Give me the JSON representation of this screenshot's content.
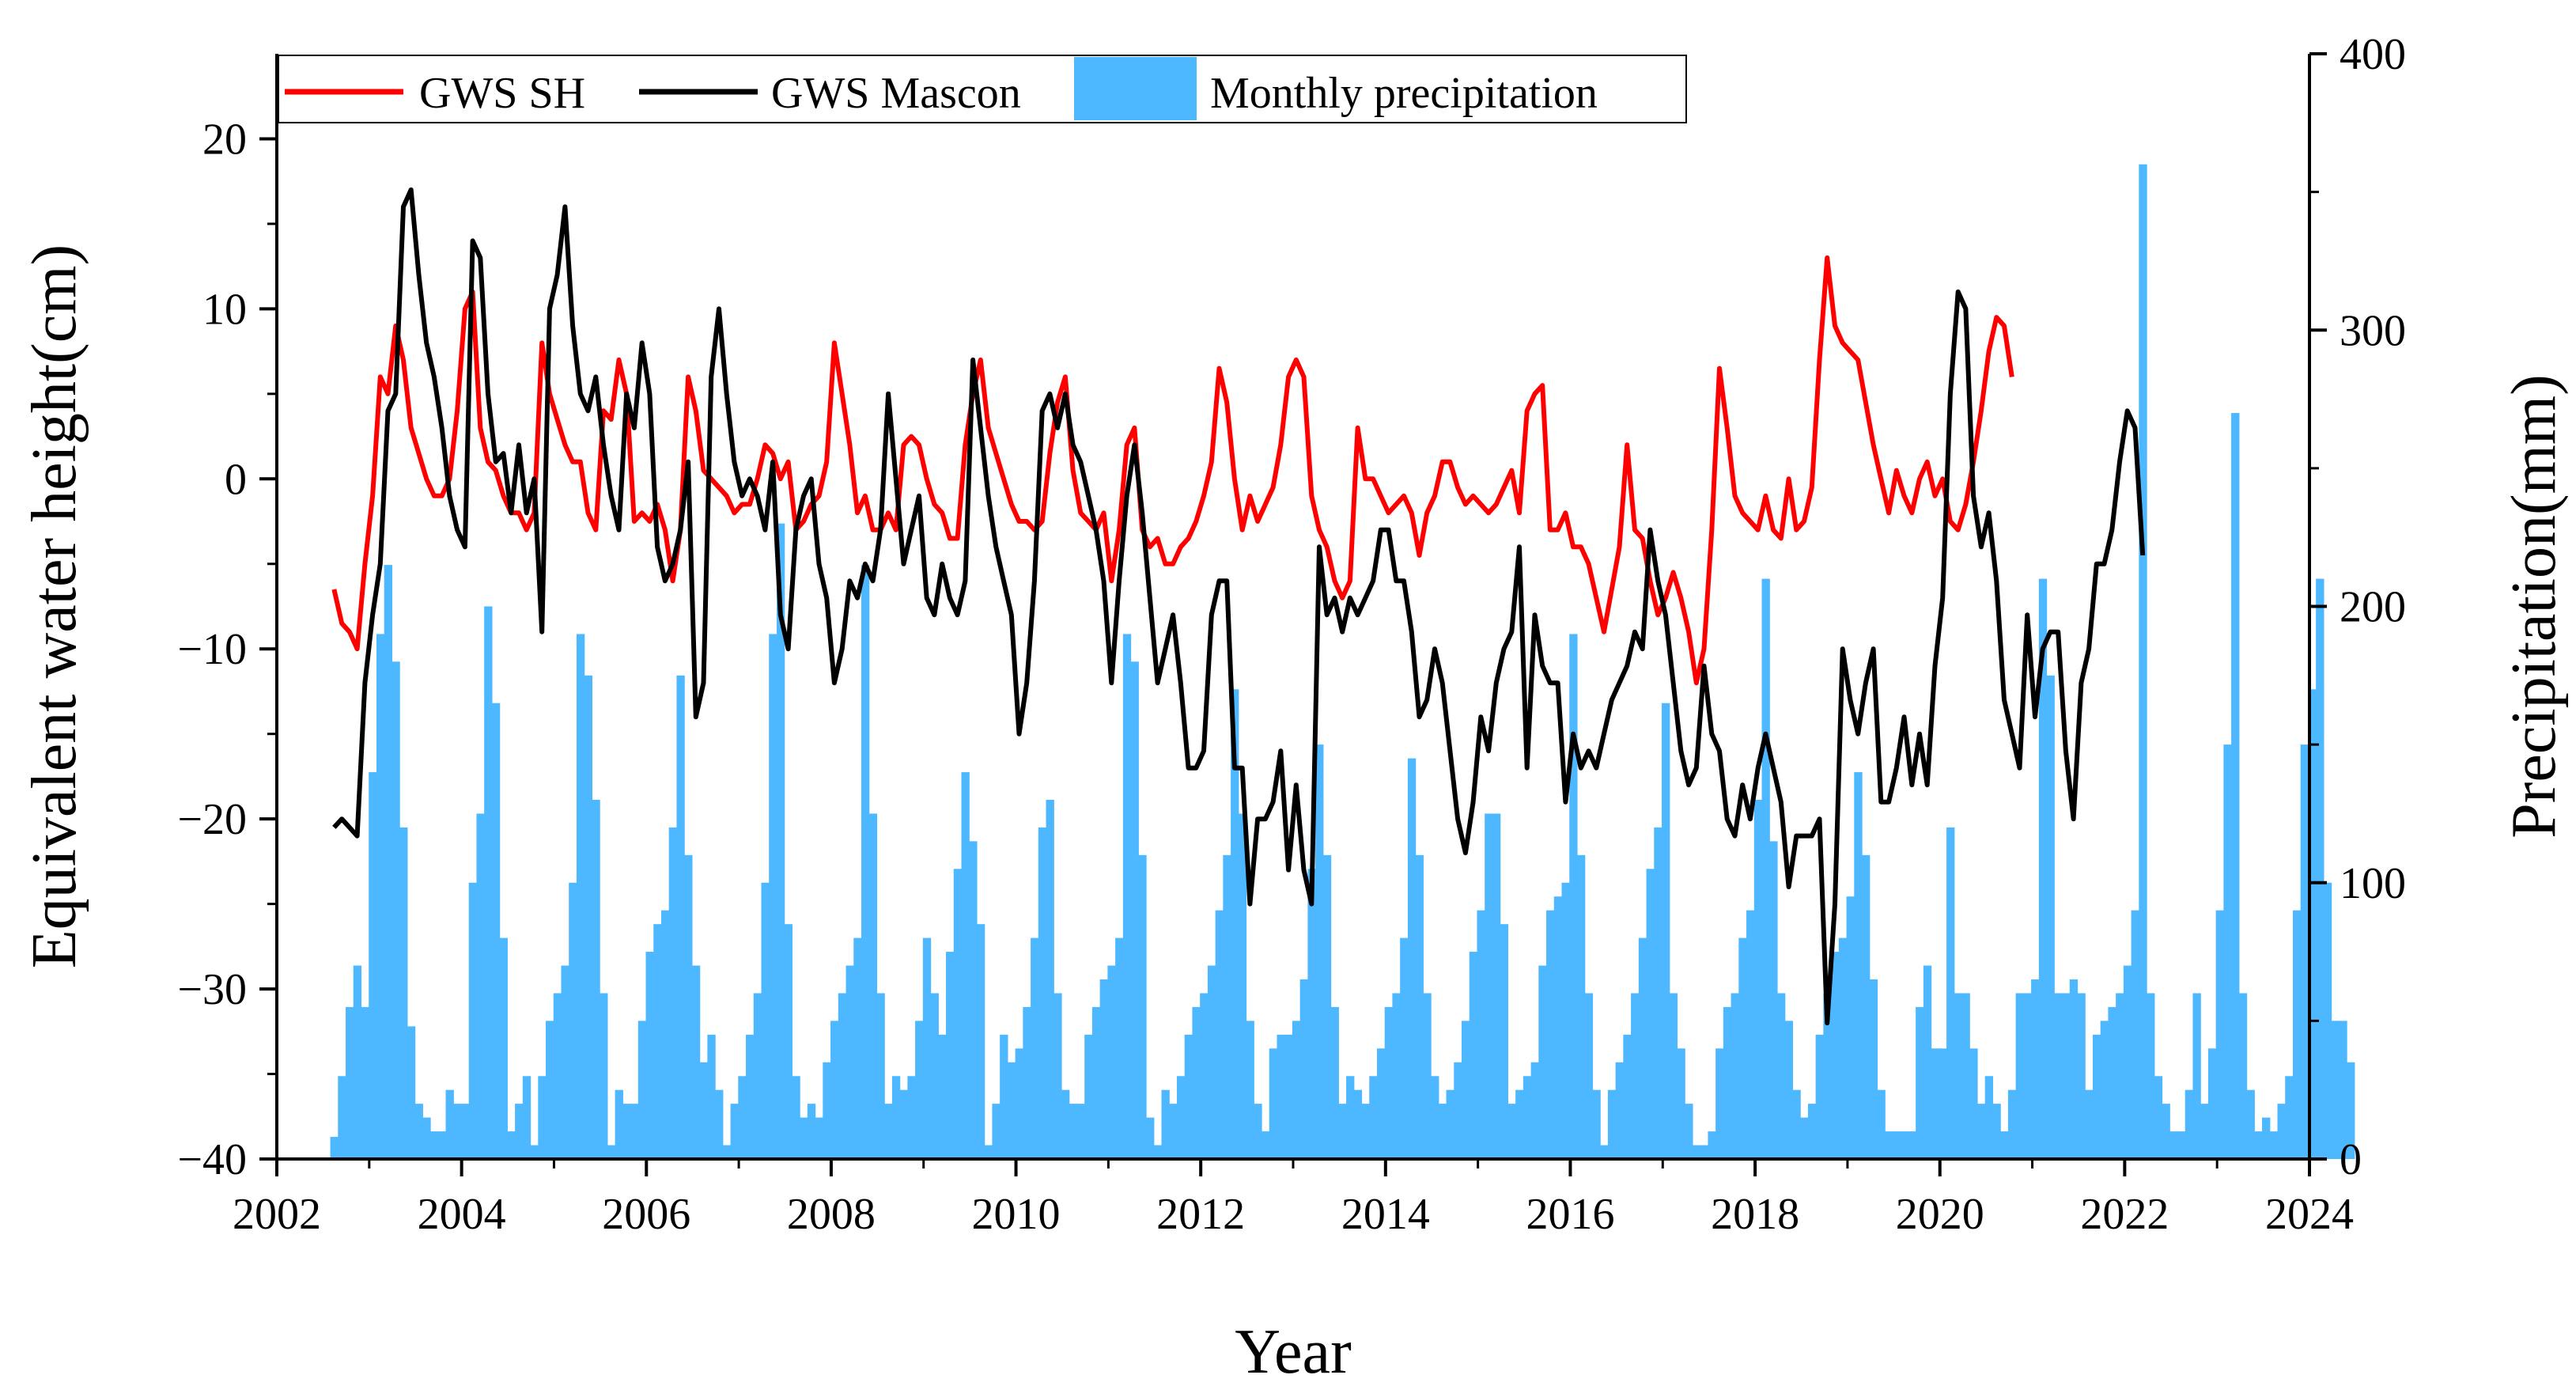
{
  "chart_data": {
    "type": "bar+line",
    "xlabel": "Year",
    "ylabel_left": "Equivalent water height(cm)",
    "ylabel_right": "Precipitation(mm)",
    "xlim": [
      2002,
      2024
    ],
    "ylim_left": [
      -40,
      25
    ],
    "ylim_right": [
      0,
      400
    ],
    "x_ticks": [
      "2002",
      "2004",
      "2006",
      "2008",
      "2010",
      "2012",
      "2014",
      "2016",
      "2018",
      "2020",
      "2022",
      "2024"
    ],
    "y_left_ticks": [
      "20",
      "10",
      "0",
      "−10",
      "−20",
      "−30",
      "−40"
    ],
    "y_right_ticks": [
      "400",
      "300",
      "200",
      "100",
      "0"
    ],
    "grid": false,
    "legend": {
      "placement": "top-left",
      "items": [
        {
          "label": "GWS SH",
          "color": "#ff0000",
          "kind": "line"
        },
        {
          "label": "GWS Mascon",
          "color": "#000000",
          "kind": "line"
        },
        {
          "label": "Monthly precipitation",
          "color": "#4db8ff",
          "kind": "bar"
        }
      ]
    },
    "precipitation": {
      "name": "Monthly precipitation",
      "color": "#4db8ff",
      "start_year": 2002.62,
      "step": 0.0833,
      "values": [
        8,
        30,
        55,
        70,
        55,
        140,
        190,
        215,
        180,
        120,
        48,
        20,
        15,
        10,
        10,
        25,
        20,
        20,
        100,
        125,
        200,
        165,
        80,
        10,
        20,
        30,
        5,
        30,
        50,
        60,
        70,
        100,
        190,
        175,
        130,
        60,
        5,
        25,
        20,
        20,
        50,
        75,
        85,
        90,
        120,
        175,
        110,
        70,
        35,
        45,
        25,
        5,
        20,
        30,
        45,
        60,
        100,
        190,
        230,
        85,
        30,
        15,
        20,
        15,
        35,
        50,
        60,
        70,
        80,
        215,
        125,
        60,
        20,
        30,
        25,
        30,
        50,
        80,
        60,
        45,
        75,
        105,
        140,
        115,
        85,
        5,
        20,
        45,
        35,
        40,
        55,
        80,
        120,
        130,
        60,
        25,
        20,
        20,
        45,
        55,
        65,
        70,
        80,
        190,
        180,
        110,
        15,
        5,
        25,
        20,
        30,
        45,
        55,
        60,
        70,
        90,
        110,
        170,
        125,
        50,
        20,
        10,
        40,
        45,
        45,
        50,
        65,
        105,
        150,
        110,
        55,
        20,
        30,
        25,
        20,
        30,
        40,
        55,
        60,
        80,
        145,
        110,
        60,
        30,
        20,
        25,
        35,
        50,
        75,
        90,
        125,
        125,
        85,
        20,
        25,
        30,
        35,
        70,
        90,
        95,
        100,
        190,
        110,
        60,
        25,
        5,
        25,
        35,
        45,
        60,
        80,
        105,
        120,
        165,
        60,
        40,
        20,
        5,
        5,
        10,
        40,
        55,
        60,
        80,
        90,
        130,
        210,
        115,
        60,
        50,
        25,
        15,
        20,
        45,
        60,
        75,
        80,
        95,
        140,
        110,
        65,
        25,
        10,
        10,
        10,
        10,
        55,
        70,
        40,
        40,
        120,
        60,
        60,
        40,
        20,
        30,
        20,
        10,
        25,
        60,
        60,
        65,
        210,
        175,
        60,
        60,
        65,
        60,
        25,
        45,
        50,
        55,
        60,
        70,
        90,
        360,
        60,
        30,
        20,
        10,
        10,
        25,
        60,
        20,
        40,
        90,
        150,
        270,
        60,
        25,
        10,
        15,
        10,
        20,
        30,
        90,
        150,
        170,
        210,
        100,
        50,
        50,
        35
      ]
    },
    "series": [
      {
        "name": "GWS SH",
        "color": "#ff0000",
        "start_year": 2002.62,
        "step": 0.0833,
        "values": [
          -6.5,
          -8.5,
          -9,
          -10,
          -5,
          -1,
          6,
          5,
          9,
          7,
          3,
          1.5,
          0,
          -1,
          -1,
          0,
          4,
          10,
          11,
          3,
          1,
          0.5,
          -1,
          -2,
          -2,
          -3,
          -2,
          8,
          5,
          3.5,
          2,
          1,
          1,
          -2,
          -3,
          4,
          3.5,
          7,
          5,
          -2.5,
          -2,
          -2.5,
          -1.5,
          -3,
          -6,
          -3,
          6,
          4,
          0.5,
          0,
          -0.5,
          -1,
          -2,
          -1.5,
          -1.5,
          0,
          2,
          1.5,
          0,
          1,
          -3,
          -2.5,
          -1.5,
          -1,
          1,
          8,
          5,
          2,
          -2,
          -1,
          -3,
          -3,
          -2,
          -3,
          2,
          2.5,
          2,
          0,
          -1.5,
          -2,
          -3.5,
          -3.5,
          2,
          5,
          7,
          3,
          1.5,
          0,
          -1.5,
          -2.5,
          -2.5,
          -3,
          -2.5,
          1.5,
          4.5,
          6,
          0.5,
          -2,
          -2.5,
          -3,
          -2,
          -6,
          -3,
          2,
          3,
          -3,
          -4,
          -3.5,
          -5,
          -5,
          -4,
          -3.5,
          -2.5,
          -1,
          1,
          6.5,
          4.5,
          0,
          -3,
          -1,
          -2.5,
          -1.5,
          -0.5,
          2,
          6,
          7,
          6,
          -1,
          -3,
          -4,
          -6,
          -7,
          -6,
          3,
          0,
          0,
          -1,
          -2,
          -1.5,
          -1,
          -2,
          -4.5,
          -2,
          -1,
          1,
          1,
          -0.5,
          -1.5,
          -1,
          -1.5,
          -2,
          -1.5,
          -0.5,
          0.5,
          -2,
          4,
          5,
          5.5,
          -3,
          -3,
          -2,
          -4,
          -4,
          -5,
          -7,
          -9,
          -6.5,
          -4,
          2,
          -3,
          -3.5,
          -6,
          -8,
          -7,
          -5.5,
          -7,
          -9,
          -12,
          -10,
          -3,
          6.5,
          3,
          -1,
          -2,
          -2.5,
          -3,
          -1,
          -3,
          -3.5,
          0,
          -3,
          -2.5,
          -0.5,
          7,
          13,
          9,
          8,
          7.5,
          7,
          4.5,
          2,
          0,
          -2,
          0.5,
          -1,
          -2,
          0,
          1,
          -1,
          0,
          -2.5,
          -3,
          -1.5,
          1,
          4,
          7.5,
          9.5,
          9,
          6
        ]
      },
      {
        "name": "GWS Mascon",
        "color": "#000000",
        "start_year": 2002.62,
        "step": 0.0833,
        "values": [
          -20.5,
          -20,
          -20.5,
          -21,
          -12,
          -8,
          -5,
          4,
          5,
          16,
          17,
          12,
          8,
          6,
          3,
          -1,
          -3,
          -4,
          14,
          13,
          5,
          1,
          1.5,
          -2,
          2,
          -2,
          0,
          -9,
          10,
          12,
          16,
          9,
          5,
          4,
          6,
          2,
          -1,
          -3,
          5,
          3,
          8,
          5,
          -4,
          -6,
          -5,
          -3,
          1,
          -14,
          -12,
          6,
          10,
          5,
          1,
          -1,
          0,
          -1,
          -3,
          1,
          -8,
          -10,
          -3,
          -1,
          0,
          -5,
          -7,
          -12,
          -10,
          -6,
          -7,
          -5,
          -6,
          -3,
          5,
          0,
          -5,
          -3,
          -1,
          -7,
          -8,
          -5,
          -7,
          -8,
          -6,
          7,
          3,
          -1,
          -4,
          -6,
          -8,
          -15,
          -12,
          -6,
          4,
          5,
          3,
          5,
          2,
          1,
          -1,
          -3,
          -6,
          -12,
          -6,
          -1,
          2,
          -2,
          -7,
          -12,
          -10,
          -8,
          -12,
          -17,
          -17,
          -16,
          -8,
          -6,
          -6,
          -17,
          -17,
          -25,
          -20,
          -20,
          -19,
          -16,
          -23,
          -18,
          -23,
          -25,
          -4,
          -8,
          -7,
          -9,
          -7,
          -8,
          -7,
          -6,
          -3,
          -3,
          -6,
          -6,
          -9,
          -14,
          -13,
          -10,
          -12,
          -16,
          -20,
          -22,
          -19,
          -14,
          -16,
          -12,
          -10,
          -9,
          -4,
          -17,
          -8,
          -11,
          -12,
          -12,
          -19,
          -15,
          -17,
          -16,
          -17,
          -15,
          -13,
          -12,
          -11,
          -9,
          -10,
          -3,
          -6,
          -8,
          -12,
          -16,
          -18,
          -17,
          -11,
          -15,
          -16,
          -20,
          -21,
          -18,
          -20,
          -17,
          -15,
          -17,
          -19,
          -24,
          -21,
          -21,
          -21,
          -20,
          -32,
          -25,
          -10,
          -13,
          -15,
          -12,
          -10,
          -19,
          -19,
          -17,
          -14,
          -18,
          -15,
          -18,
          -11,
          -7,
          5,
          11,
          10,
          -1,
          -4,
          -2,
          -6,
          -13,
          -15,
          -17,
          -8,
          -14,
          -10,
          -9,
          -9,
          -16,
          -20,
          -12,
          -10,
          -5,
          -5,
          -3,
          1,
          4,
          3,
          -4.5
        ]
      }
    ]
  }
}
